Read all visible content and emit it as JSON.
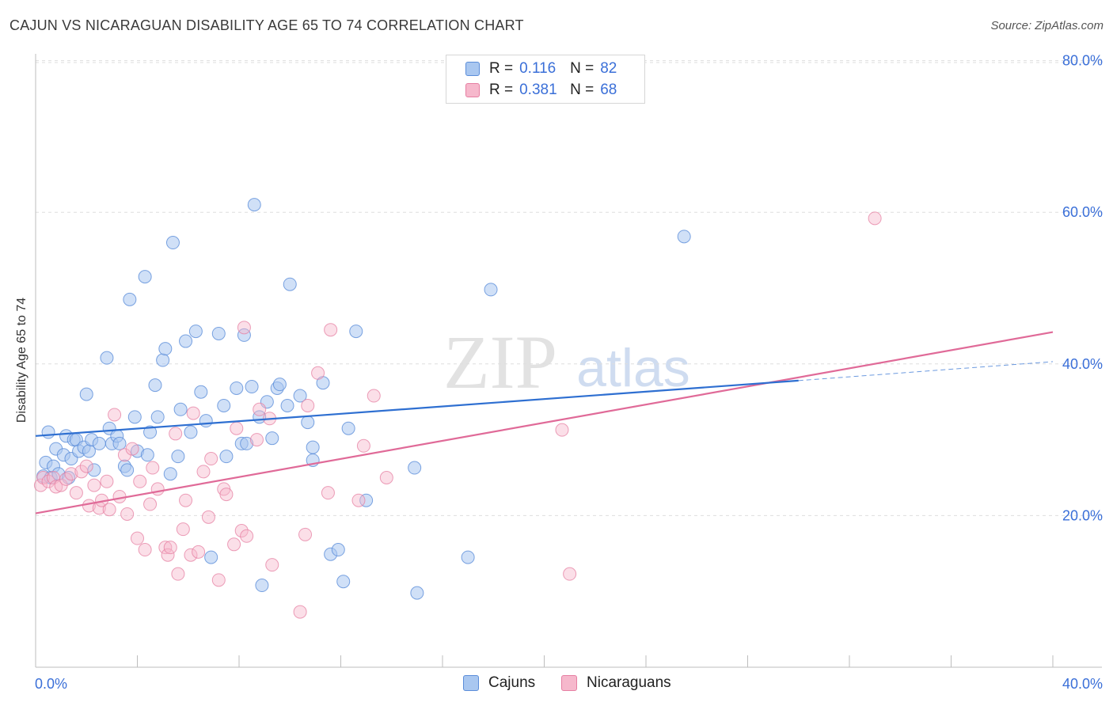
{
  "title": "CAJUN VS NICARAGUAN DISABILITY AGE 65 TO 74 CORRELATION CHART",
  "source": "Source: ZipAtlas.com",
  "watermark": {
    "zip": "ZIP",
    "atlas": "atlas"
  },
  "legend_top": {
    "rows": [
      {
        "r_label": "R =",
        "r_value": "0.116",
        "n_label": "N =",
        "n_value": "82"
      },
      {
        "r_label": "R =",
        "r_value": "0.381",
        "n_label": "N =",
        "n_value": "68"
      }
    ]
  },
  "colors": {
    "cajun_fill": "#a9c7f0",
    "cajun_stroke": "#5b8dd9",
    "cajun_line": "#2e6fd1",
    "nica_fill": "#f6b8cc",
    "nica_stroke": "#e67fa2",
    "nica_line": "#e06a98",
    "axis_text": "#3a6fd8",
    "grid": "#dedede"
  },
  "chart_data": {
    "type": "scatter",
    "title": "CAJUN VS NICARAGUAN DISABILITY AGE 65 TO 74 CORRELATION CHART",
    "xlabel": "",
    "ylabel": "Disability Age 65 to 74",
    "xlim": [
      0,
      40
    ],
    "ylim": [
      0,
      82
    ],
    "x_tick_labels": [
      "0.0%",
      "40.0%"
    ],
    "y_ticks": [
      20,
      40,
      60,
      80
    ],
    "y_tick_labels": [
      "20.0%",
      "40.0%",
      "60.0%",
      "80.0%"
    ],
    "grid": true,
    "legend_position": "top-center",
    "series": [
      {
        "name": "Cajuns",
        "r": 0.116,
        "n": 82,
        "trend": {
          "x": [
            0,
            30
          ],
          "y": [
            30.5,
            37.8
          ],
          "dashed_to": [
            40,
            40.3
          ]
        },
        "points": [
          [
            0.3,
            25.2
          ],
          [
            0.4,
            27.0
          ],
          [
            0.5,
            31.0
          ],
          [
            0.6,
            25.0
          ],
          [
            0.7,
            26.5
          ],
          [
            0.8,
            28.8
          ],
          [
            0.9,
            25.5
          ],
          [
            1.1,
            28.0
          ],
          [
            1.2,
            30.5
          ],
          [
            1.3,
            25.0
          ],
          [
            1.4,
            27.5
          ],
          [
            1.5,
            30.0
          ],
          [
            1.6,
            30.0
          ],
          [
            1.7,
            28.5
          ],
          [
            1.9,
            29.0
          ],
          [
            2.0,
            36.0
          ],
          [
            2.1,
            28.5
          ],
          [
            2.2,
            30.0
          ],
          [
            2.3,
            26.0
          ],
          [
            2.5,
            29.5
          ],
          [
            2.8,
            40.8
          ],
          [
            2.9,
            31.5
          ],
          [
            3.0,
            29.5
          ],
          [
            3.2,
            30.5
          ],
          [
            3.3,
            29.5
          ],
          [
            3.5,
            26.5
          ],
          [
            3.6,
            26.0
          ],
          [
            3.7,
            48.5
          ],
          [
            3.9,
            33.0
          ],
          [
            4.0,
            28.5
          ],
          [
            4.3,
            51.5
          ],
          [
            4.4,
            28.0
          ],
          [
            4.5,
            31.0
          ],
          [
            4.7,
            37.2
          ],
          [
            4.8,
            33.0
          ],
          [
            5.0,
            40.5
          ],
          [
            5.1,
            42.0
          ],
          [
            5.3,
            25.5
          ],
          [
            5.4,
            56.0
          ],
          [
            5.6,
            27.8
          ],
          [
            5.7,
            34.0
          ],
          [
            5.9,
            43.0
          ],
          [
            6.1,
            31.0
          ],
          [
            6.3,
            44.3
          ],
          [
            6.5,
            36.3
          ],
          [
            6.7,
            32.5
          ],
          [
            6.9,
            14.5
          ],
          [
            7.2,
            44.0
          ],
          [
            7.4,
            34.5
          ],
          [
            7.5,
            27.8
          ],
          [
            7.9,
            36.8
          ],
          [
            8.1,
            29.5
          ],
          [
            8.2,
            43.8
          ],
          [
            8.3,
            29.5
          ],
          [
            8.5,
            37.0
          ],
          [
            8.6,
            61.0
          ],
          [
            8.8,
            33.0
          ],
          [
            8.9,
            10.8
          ],
          [
            9.1,
            35.0
          ],
          [
            9.3,
            30.2
          ],
          [
            9.5,
            36.8
          ],
          [
            9.6,
            37.3
          ],
          [
            9.9,
            34.5
          ],
          [
            10.0,
            50.5
          ],
          [
            10.4,
            35.8
          ],
          [
            10.7,
            32.3
          ],
          [
            10.9,
            29.0
          ],
          [
            10.9,
            27.3
          ],
          [
            11.3,
            37.5
          ],
          [
            11.6,
            14.9
          ],
          [
            11.9,
            15.5
          ],
          [
            12.1,
            11.3
          ],
          [
            12.3,
            31.5
          ],
          [
            12.6,
            44.3
          ],
          [
            13.0,
            22.0
          ],
          [
            14.9,
            26.3
          ],
          [
            15.0,
            9.8
          ],
          [
            17.0,
            14.5
          ],
          [
            17.9,
            49.8
          ],
          [
            25.5,
            56.8
          ]
        ]
      },
      {
        "name": "Nicaraguans",
        "r": 0.381,
        "n": 68,
        "trend": {
          "x": [
            0,
            40
          ],
          "y": [
            20.3,
            44.2
          ]
        },
        "points": [
          [
            0.2,
            24.0
          ],
          [
            0.3,
            25.0
          ],
          [
            0.5,
            24.5
          ],
          [
            0.7,
            25.0
          ],
          [
            0.8,
            23.8
          ],
          [
            1.0,
            24.0
          ],
          [
            1.2,
            24.8
          ],
          [
            1.4,
            25.5
          ],
          [
            1.6,
            23.0
          ],
          [
            1.8,
            25.8
          ],
          [
            2.0,
            26.5
          ],
          [
            2.1,
            21.3
          ],
          [
            2.3,
            24.0
          ],
          [
            2.5,
            21.0
          ],
          [
            2.6,
            22.0
          ],
          [
            2.8,
            24.5
          ],
          [
            2.9,
            20.8
          ],
          [
            3.1,
            33.3
          ],
          [
            3.3,
            22.5
          ],
          [
            3.5,
            28.0
          ],
          [
            3.6,
            20.2
          ],
          [
            3.8,
            28.8
          ],
          [
            4.0,
            17.0
          ],
          [
            4.1,
            24.5
          ],
          [
            4.3,
            15.5
          ],
          [
            4.5,
            21.5
          ],
          [
            4.6,
            26.3
          ],
          [
            4.8,
            23.5
          ],
          [
            5.1,
            15.8
          ],
          [
            5.2,
            14.8
          ],
          [
            5.3,
            15.8
          ],
          [
            5.5,
            30.8
          ],
          [
            5.6,
            12.3
          ],
          [
            5.8,
            18.2
          ],
          [
            5.9,
            22.0
          ],
          [
            6.1,
            14.8
          ],
          [
            6.2,
            33.5
          ],
          [
            6.4,
            15.2
          ],
          [
            6.6,
            25.8
          ],
          [
            6.8,
            19.8
          ],
          [
            6.9,
            27.5
          ],
          [
            7.2,
            11.5
          ],
          [
            7.4,
            23.5
          ],
          [
            7.5,
            22.8
          ],
          [
            7.8,
            16.2
          ],
          [
            7.9,
            31.5
          ],
          [
            8.1,
            18.0
          ],
          [
            8.2,
            44.8
          ],
          [
            8.3,
            17.3
          ],
          [
            8.7,
            30.0
          ],
          [
            8.8,
            34.0
          ],
          [
            9.2,
            32.8
          ],
          [
            9.3,
            13.5
          ],
          [
            10.4,
            7.3
          ],
          [
            10.6,
            17.5
          ],
          [
            10.7,
            34.5
          ],
          [
            11.1,
            38.8
          ],
          [
            11.5,
            23.0
          ],
          [
            11.6,
            44.5
          ],
          [
            12.7,
            22.0
          ],
          [
            12.9,
            29.2
          ],
          [
            13.3,
            35.8
          ],
          [
            13.8,
            25.0
          ],
          [
            20.7,
            31.3
          ],
          [
            21.0,
            12.3
          ],
          [
            33.0,
            59.2
          ]
        ]
      }
    ]
  }
}
